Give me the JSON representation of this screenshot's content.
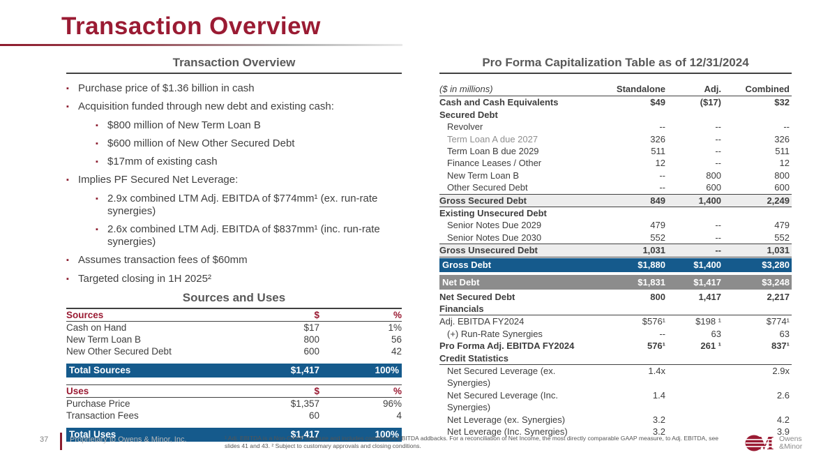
{
  "slide": {
    "title": "Transaction Overview",
    "page_number": "37",
    "footer_left": "Proprietary to Owens & Minor, Inc.",
    "footnote_line1": "¹ Adj. EBITDA is a Non-GAAP measure and includes compliance EBITDA addbacks. For a reconciliation of Net Income, the most directly comparable GAAP measure, to Adj. EBITDA,  see",
    "footnote_line2": "slides 41 and 43. ² Subject to customary approvals and closing conditions.",
    "logo": {
      "monogram": "OM",
      "name_line1": "Owens",
      "name_line2": "&Minor"
    }
  },
  "colors": {
    "accent_maroon": "#9a1b33",
    "band_blue": "#155a8c",
    "band_gray": "#8c8c8c",
    "subtotal_bg": "#ededed",
    "header_gray": "#595959",
    "text_dark": "#3d3d3d"
  },
  "left": {
    "header": "Transaction Overview",
    "bullets": [
      {
        "level": 1,
        "text": "Purchase price of $1.36 billion in cash"
      },
      {
        "level": 1,
        "text": "Acquisition funded through new debt and existing cash:"
      },
      {
        "level": 2,
        "text": "$800 million of New Term Loan B"
      },
      {
        "level": 2,
        "text": "$600 million of New Other Secured Debt"
      },
      {
        "level": 2,
        "text": "$17mm of existing cash"
      },
      {
        "level": 1,
        "text": "Implies PF Secured Net Leverage:"
      },
      {
        "level": 2,
        "text": "2.9x combined LTM Adj. EBITDA of $774mm¹ (ex. run-rate synergies)"
      },
      {
        "level": 2,
        "text": "2.6x combined LTM Adj. EBITDA of $837mm¹ (inc. run-rate synergies)"
      },
      {
        "level": 1,
        "text": "Assumes transaction fees of $60mm"
      },
      {
        "level": 1,
        "text": "Targeted closing in 1H 2025²"
      }
    ],
    "sources_uses": {
      "header": "Sources and Uses",
      "sources": {
        "columns": [
          "Sources",
          "$",
          "%"
        ],
        "rows": [
          [
            "Cash on Hand",
            "$17",
            "1%"
          ],
          [
            "New Term Loan B",
            "800",
            "56"
          ],
          [
            "New Other Secured Debt",
            "600",
            "42"
          ]
        ],
        "total": [
          "Total Sources",
          "$1,417",
          "100%"
        ]
      },
      "uses": {
        "columns": [
          "Uses",
          "$",
          "%"
        ],
        "rows": [
          [
            "Purchase Price",
            "$1,357",
            "96%"
          ],
          [
            "Transaction Fees",
            "60",
            "4"
          ]
        ],
        "total": [
          "Total Uses",
          "$1,417",
          "100%"
        ]
      }
    }
  },
  "right": {
    "header": "Pro Forma Capitalization Table as of 12/31/2024",
    "cap_table": {
      "columns": [
        "($ in millions)",
        "Standalone",
        "Adj.",
        "Combined"
      ],
      "rows": [
        {
          "label": "Cash and Cash Equivalents",
          "values": [
            "$49",
            "($17)",
            "$32"
          ],
          "style": "boldrow"
        },
        {
          "label": "Secured Debt",
          "values": [
            "",
            "",
            ""
          ],
          "style": "section"
        },
        {
          "label": "Revolver",
          "values": [
            "--",
            "--",
            "--"
          ],
          "style": "indent"
        },
        {
          "label": "Term Loan A due 2027",
          "values": [
            "326",
            "--",
            "326"
          ],
          "style": "indent graylab"
        },
        {
          "label": "Term Loan B due 2029",
          "values": [
            "511",
            "--",
            "511"
          ],
          "style": "indent"
        },
        {
          "label": "Finance Leases / Other",
          "values": [
            "12",
            "--",
            "12"
          ],
          "style": "indent"
        },
        {
          "label": "New Term Loan B",
          "values": [
            "--",
            "800",
            "800"
          ],
          "style": "indent"
        },
        {
          "label": "Other Secured Debt",
          "values": [
            "--",
            "600",
            "600"
          ],
          "style": "indent"
        },
        {
          "label": "Gross Secured Debt",
          "values": [
            "849",
            "1,400",
            "2,249"
          ],
          "style": "subtotal"
        },
        {
          "label": "Existing Unsecured Debt",
          "values": [
            "",
            "",
            ""
          ],
          "style": "section"
        },
        {
          "label": "Senior Notes Due 2029",
          "values": [
            "479",
            "--",
            "479"
          ],
          "style": "indent"
        },
        {
          "label": "Senior Notes Due 2030",
          "values": [
            "552",
            "--",
            "552"
          ],
          "style": "indent"
        },
        {
          "label": "Gross Unsecured Debt",
          "values": [
            "1,031",
            "--",
            "1,031"
          ],
          "style": "subtotal"
        },
        {
          "label": "Gross Debt",
          "values": [
            "$1,880",
            "$1,400",
            "$3,280"
          ],
          "style": "band-blue"
        },
        {
          "label": "Net Debt",
          "values": [
            "$1,831",
            "$1,417",
            "$3,248"
          ],
          "style": "band-gray"
        },
        {
          "label": "Net Secured Debt",
          "values": [
            "800",
            "1,417",
            "2,217"
          ],
          "style": "boldrow"
        },
        {
          "label": "Financials",
          "values": [
            "",
            "",
            ""
          ],
          "style": "section underline"
        },
        {
          "label": "Adj. EBITDA FY2024",
          "values": [
            "$576¹",
            "$198 ¹",
            "$774¹"
          ],
          "style": "plain"
        },
        {
          "label": "(+) Run-Rate Synergies",
          "values": [
            "--",
            "63",
            "63"
          ],
          "style": "indent"
        },
        {
          "label": "Pro Forma Adj. EBITDA FY2024",
          "values": [
            "576¹",
            "261 ¹",
            "837¹"
          ],
          "style": "boldrow"
        },
        {
          "label": "Credit Statistics",
          "values": [
            "",
            "",
            ""
          ],
          "style": "section underline"
        },
        {
          "label": "Net Secured Leverage (ex. Synergies)",
          "values": [
            "1.4x",
            "",
            "2.9x"
          ],
          "style": "indent"
        },
        {
          "label": "Net Secured Leverage (Inc. Synergies)",
          "values": [
            "1.4",
            "",
            "2.6"
          ],
          "style": "indent"
        },
        {
          "label": "Net Leverage (ex. Synergies)",
          "values": [
            "3.2",
            "",
            "4.2"
          ],
          "style": "indent"
        },
        {
          "label": "Net Leverage (Inc. Synergies)",
          "values": [
            "3.2",
            "",
            "3.9"
          ],
          "style": "indent"
        }
      ]
    }
  }
}
